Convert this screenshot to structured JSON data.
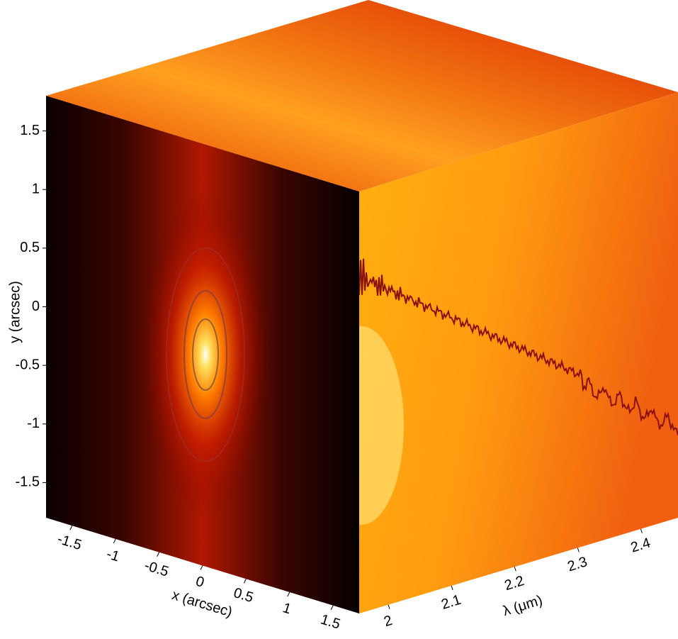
{
  "chart_data": {
    "type": "cube",
    "xlabel": "x (arcsec)",
    "ylabel": "y (arcsec)",
    "zlabel": "λ (μm)",
    "xlim": [
      -1.8,
      1.8
    ],
    "ylim": [
      -1.8,
      1.8
    ],
    "zlim": [
      1.954,
      2.459
    ],
    "xticks": [
      -1.5,
      -1,
      -0.5,
      0,
      0.5,
      1,
      1.5
    ],
    "yticks": [
      -1.5,
      -1,
      -0.5,
      0,
      0.5,
      1,
      1.5
    ],
    "zticks": [
      2,
      2.1,
      2.2,
      2.3,
      2.4
    ]
  }
}
